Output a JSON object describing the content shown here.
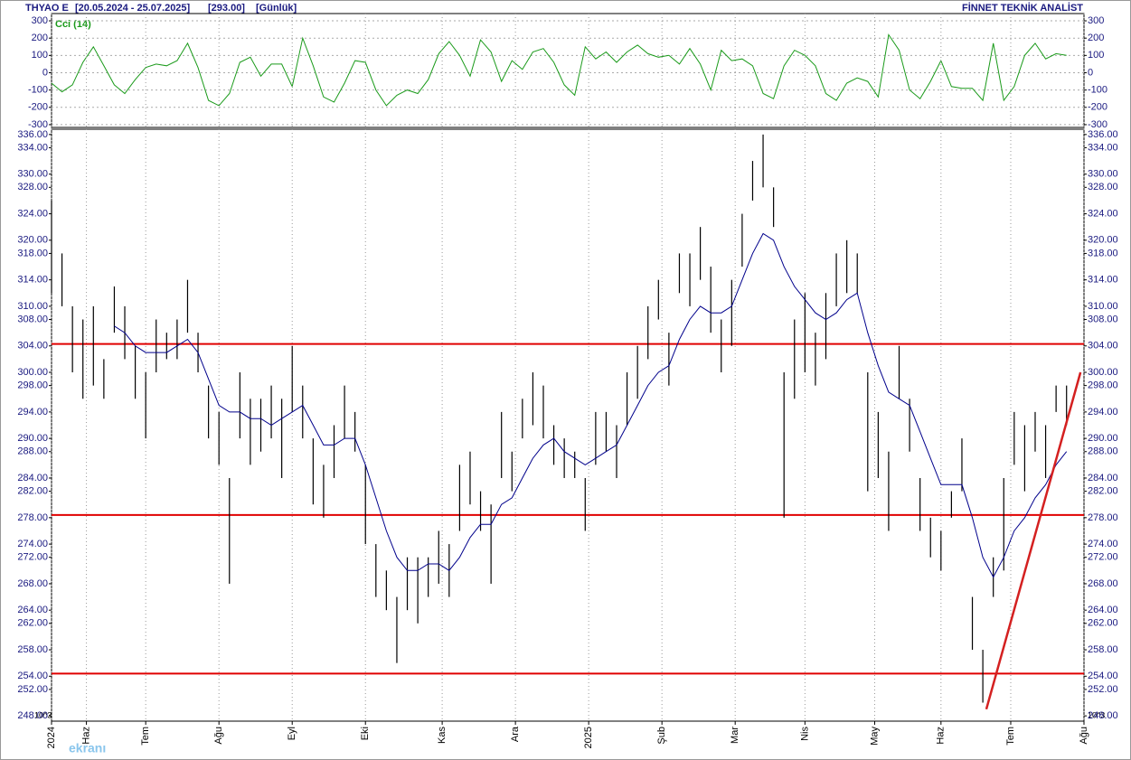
{
  "header": {
    "title": "THYAO E",
    "date_range": "[20.05.2024 - 25.07.2025]",
    "last": "[293.00]",
    "period": "[Günlük]",
    "source": "FİNNET TEKNİK ANALİST",
    "scale_note": "10^3",
    "watermark": "ekranı"
  },
  "chart_data": [
    {
      "type": "line",
      "x": [
        0,
        3,
        6,
        9,
        12,
        15,
        18,
        21,
        24,
        27,
        30,
        33,
        36,
        39,
        42,
        45,
        48,
        51,
        54,
        57,
        60,
        63,
        66,
        69,
        72,
        75,
        78,
        81,
        84,
        87,
        90,
        93,
        96,
        99,
        102,
        105,
        108,
        111,
        114,
        117,
        120,
        123,
        126,
        129,
        132,
        135,
        138,
        141,
        144,
        147,
        150,
        153,
        156,
        159,
        162,
        165,
        168,
        171,
        174,
        177,
        180,
        183,
        186,
        189,
        192,
        195,
        198,
        201,
        204,
        207,
        210,
        213,
        216,
        219,
        222,
        225,
        228,
        231,
        234,
        237,
        240,
        243,
        246,
        249,
        252,
        255,
        258,
        261,
        264,
        267,
        270,
        273,
        276,
        279,
        282,
        285,
        288,
        291
      ],
      "xlim": [
        0,
        296
      ],
      "ylim": [
        -316,
        342
      ],
      "yticks": [
        300,
        200,
        100,
        0,
        -100,
        -200,
        -300
      ],
      "ygrid": true,
      "series": [
        {
          "name": "Cci (14)",
          "color": "#1a9a1a",
          "values": [
            -60,
            -110,
            -70,
            60,
            150,
            40,
            -70,
            -120,
            -40,
            30,
            50,
            40,
            70,
            170,
            30,
            -160,
            -190,
            -120,
            60,
            90,
            -20,
            50,
            50,
            -80,
            200,
            40,
            -140,
            -170,
            -60,
            70,
            60,
            -100,
            -190,
            -130,
            -100,
            -120,
            -40,
            110,
            180,
            100,
            -20,
            190,
            120,
            -50,
            70,
            20,
            120,
            140,
            60,
            -70,
            -130,
            150,
            80,
            120,
            60,
            120,
            160,
            110,
            90,
            100,
            50,
            140,
            50,
            -100,
            130,
            70,
            80,
            40,
            -120,
            -150,
            40,
            130,
            100,
            40,
            -120,
            -160,
            -60,
            -30,
            -50,
            -140,
            220,
            130,
            -100,
            -150,
            -50,
            70,
            -80,
            -90,
            -90,
            -160,
            170,
            -160,
            -80,
            100,
            170,
            80,
            110,
            100
          ]
        }
      ]
    },
    {
      "type": "ohlc",
      "x": [
        0,
        3,
        6,
        9,
        12,
        15,
        18,
        21,
        24,
        27,
        30,
        33,
        36,
        39,
        42,
        45,
        48,
        51,
        54,
        57,
        60,
        63,
        66,
        69,
        72,
        75,
        78,
        81,
        84,
        87,
        90,
        93,
        96,
        99,
        102,
        105,
        108,
        111,
        114,
        117,
        120,
        123,
        126,
        129,
        132,
        135,
        138,
        141,
        144,
        147,
        150,
        153,
        156,
        159,
        162,
        165,
        168,
        171,
        174,
        177,
        180,
        183,
        186,
        189,
        192,
        195,
        198,
        201,
        204,
        207,
        210,
        213,
        216,
        219,
        222,
        225,
        228,
        231,
        234,
        237,
        240,
        243,
        246,
        249,
        252,
        255,
        258,
        261,
        264,
        267,
        270,
        273,
        276,
        279,
        282,
        285,
        288,
        291
      ],
      "highs": [
        326,
        318,
        310,
        308,
        310,
        302,
        313,
        310,
        304,
        300,
        308,
        306,
        308,
        314,
        306,
        298,
        294,
        284,
        300,
        296,
        296,
        298,
        296,
        304,
        298,
        290,
        286,
        292,
        298,
        294,
        286,
        274,
        270,
        266,
        272,
        272,
        272,
        276,
        274,
        286,
        288,
        282,
        280,
        294,
        288,
        296,
        300,
        298,
        292,
        290,
        288,
        284,
        294,
        294,
        292,
        300,
        304,
        310,
        314,
        306,
        318,
        318,
        322,
        316,
        308,
        314,
        324,
        332,
        336,
        328,
        300,
        308,
        312,
        306,
        312,
        318,
        320,
        318,
        300,
        294,
        288,
        304,
        296,
        284,
        278,
        276,
        282,
        290,
        266,
        258,
        272,
        284,
        294,
        292,
        294,
        292,
        298,
        298
      ],
      "lows": [
        312,
        310,
        300,
        296,
        298,
        296,
        306,
        302,
        296,
        290,
        300,
        302,
        302,
        306,
        300,
        290,
        286,
        268,
        290,
        286,
        288,
        290,
        284,
        294,
        290,
        280,
        278,
        284,
        290,
        288,
        274,
        266,
        264,
        256,
        264,
        262,
        266,
        268,
        266,
        276,
        280,
        276,
        268,
        284,
        282,
        290,
        292,
        290,
        286,
        284,
        284,
        276,
        286,
        288,
        284,
        292,
        296,
        302,
        308,
        298,
        312,
        310,
        314,
        306,
        300,
        304,
        316,
        326,
        328,
        322,
        278,
        296,
        300,
        298,
        302,
        310,
        312,
        312,
        282,
        284,
        276,
        296,
        288,
        276,
        272,
        270,
        278,
        282,
        258,
        250,
        266,
        270,
        286,
        282,
        288,
        284,
        294,
        292
      ],
      "color": "#000000",
      "series": [
        {
          "color": "#00008b",
          "values": [
            null,
            null,
            null,
            null,
            null,
            null,
            307,
            306,
            304,
            303,
            303,
            303,
            304,
            305,
            303,
            299,
            295,
            294,
            294,
            293,
            293,
            292,
            293,
            294,
            295,
            292,
            289,
            289,
            290,
            290,
            286,
            281,
            276,
            272,
            270,
            270,
            271,
            271,
            270,
            272,
            275,
            277,
            277,
            280,
            281,
            284,
            287,
            289,
            290,
            288,
            287,
            286,
            287,
            288,
            289,
            292,
            295,
            298,
            300,
            301,
            305,
            308,
            310,
            309,
            309,
            310,
            314,
            318,
            321,
            320,
            316,
            313,
            311,
            309,
            308,
            309,
            311,
            312,
            306,
            301,
            297,
            296,
            295,
            291,
            287,
            283,
            283,
            283,
            278,
            272,
            269,
            272,
            276,
            278,
            281,
            283,
            286,
            288
          ]
        }
      ],
      "hlines": [
        304.3,
        278.4,
        254.4
      ],
      "hline_color": "#e00000",
      "trendline": {
        "x": [
          268,
          295
        ],
        "y": [
          249,
          300
        ],
        "color": "#d42020"
      },
      "xlim": [
        0,
        296
      ],
      "ylim": [
        247.2,
        336.8
      ],
      "xgrid": true,
      "xticks": [
        {
          "value": 0,
          "label": "2024"
        },
        {
          "value": 10,
          "label": "Haz"
        },
        {
          "value": 27,
          "label": "Tem"
        },
        {
          "value": 48,
          "label": "Ağu"
        },
        {
          "value": 69,
          "label": "Eyl"
        },
        {
          "value": 90,
          "label": "Eki"
        },
        {
          "value": 112,
          "label": "Kas"
        },
        {
          "value": 133,
          "label": "Ara"
        },
        {
          "value": 154,
          "label": "2025"
        },
        {
          "value": 175,
          "label": "Şub"
        },
        {
          "value": 196,
          "label": "Mar"
        },
        {
          "value": 216,
          "label": "Nis"
        },
        {
          "value": 236,
          "label": "May"
        },
        {
          "value": 255,
          "label": "Haz"
        },
        {
          "value": 275,
          "label": "Tem"
        },
        {
          "value": 296,
          "label": "Ağu"
        }
      ],
      "yticks": [
        {
          "value": 336,
          "label": "336.00"
        },
        {
          "value": 334,
          "label": "334.00"
        },
        {
          "value": 330,
          "label": "330.00"
        },
        {
          "value": 328,
          "label": "328.00"
        },
        {
          "value": 324,
          "label": "324.00"
        },
        {
          "value": 320,
          "label": "320.00"
        },
        {
          "value": 318,
          "label": "318.00"
        },
        {
          "value": 314,
          "label": "314.00"
        },
        {
          "value": 310,
          "label": "310.00"
        },
        {
          "value": 308,
          "label": "308.00"
        },
        {
          "value": 304,
          "label": "304.00"
        },
        {
          "value": 300,
          "label": "300.00"
        },
        {
          "value": 298,
          "label": "298.00"
        },
        {
          "value": 294,
          "label": "294.00"
        },
        {
          "value": 290,
          "label": "290.00"
        },
        {
          "value": 288,
          "label": "288.00"
        },
        {
          "value": 284,
          "label": "284.00"
        },
        {
          "value": 282,
          "label": "282.00"
        },
        {
          "value": 278,
          "label": "278.00"
        },
        {
          "value": 274,
          "label": "274.00"
        },
        {
          "value": 272,
          "label": "272.00"
        },
        {
          "value": 268,
          "label": "268.00"
        },
        {
          "value": 264,
          "label": "264.00"
        },
        {
          "value": 262,
          "label": "262.00"
        },
        {
          "value": 258,
          "label": "258.00"
        },
        {
          "value": 254,
          "label": "254.00"
        },
        {
          "value": 252,
          "label": "252.00"
        },
        {
          "value": 248,
          "label": "248.00"
        }
      ]
    }
  ]
}
